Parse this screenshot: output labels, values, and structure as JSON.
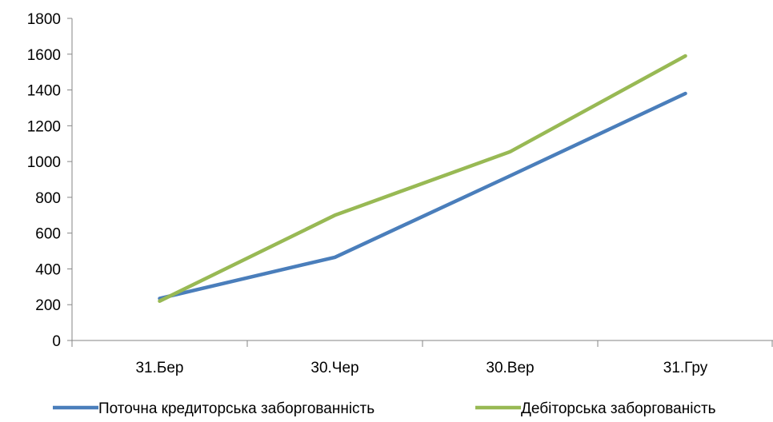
{
  "chart_data": {
    "type": "line",
    "title": "",
    "xlabel": "",
    "ylabel": "",
    "categories": [
      "31.Бер",
      "30.Чер",
      "30.Вер",
      "31.Гру"
    ],
    "ylim": [
      0,
      1800
    ],
    "yticks": [
      0,
      200,
      400,
      600,
      800,
      1000,
      1200,
      1400,
      1600,
      1800
    ],
    "grid": false,
    "legend_position": "bottom",
    "series": [
      {
        "name": "Поточна кредиторська заборгованність",
        "color": "#4a7ebb",
        "values": [
          235,
          465,
          920,
          1380
        ]
      },
      {
        "name": "Дебіторська заборгованість",
        "color": "#98b954",
        "values": [
          220,
          700,
          1055,
          1590
        ]
      }
    ]
  }
}
